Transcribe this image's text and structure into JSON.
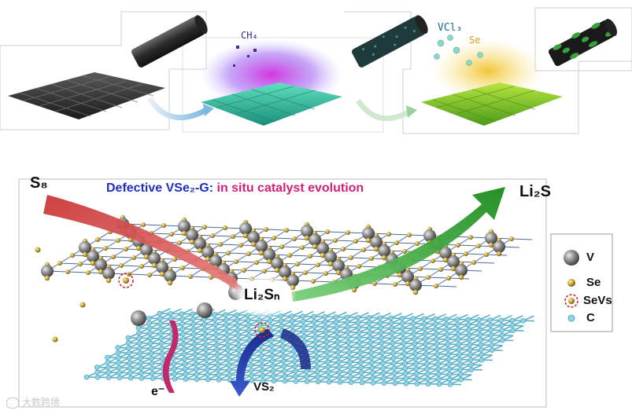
{
  "top_panel": {
    "ch4_label": "CH₄",
    "vcl3_label": "VCl₃",
    "se_label": "Se"
  },
  "main_panel": {
    "title_part1": "Defective VSe₂-G:",
    "title_part2": " in situ catalyst evolution",
    "s8_label": "S₈",
    "li2s_label": "Li₂S",
    "li2sn_label": "Li₂Sₙ",
    "electron_label": "e⁻",
    "vs2_label": "VS₂"
  },
  "legend": {
    "items": [
      {
        "symbol": "V",
        "label": "V",
        "color": "#7a7a7a"
      },
      {
        "symbol": "Se",
        "label": "Se",
        "color": "#c9a93a"
      },
      {
        "symbol": "SeVs",
        "label": "SeVs",
        "color": "#c9a93a"
      },
      {
        "symbol": "C",
        "label": "C",
        "color": "#8fd3e6"
      }
    ]
  },
  "watermark": "大数跨境",
  "colors": {
    "title_blue": "#1f2fbf",
    "title_magenta": "#d0207a",
    "arrow_red": "#c83a3a",
    "arrow_green": "#2a9a2a",
    "arrow_blue": "#1f3a9a",
    "graphene": "#8fd3e6"
  }
}
